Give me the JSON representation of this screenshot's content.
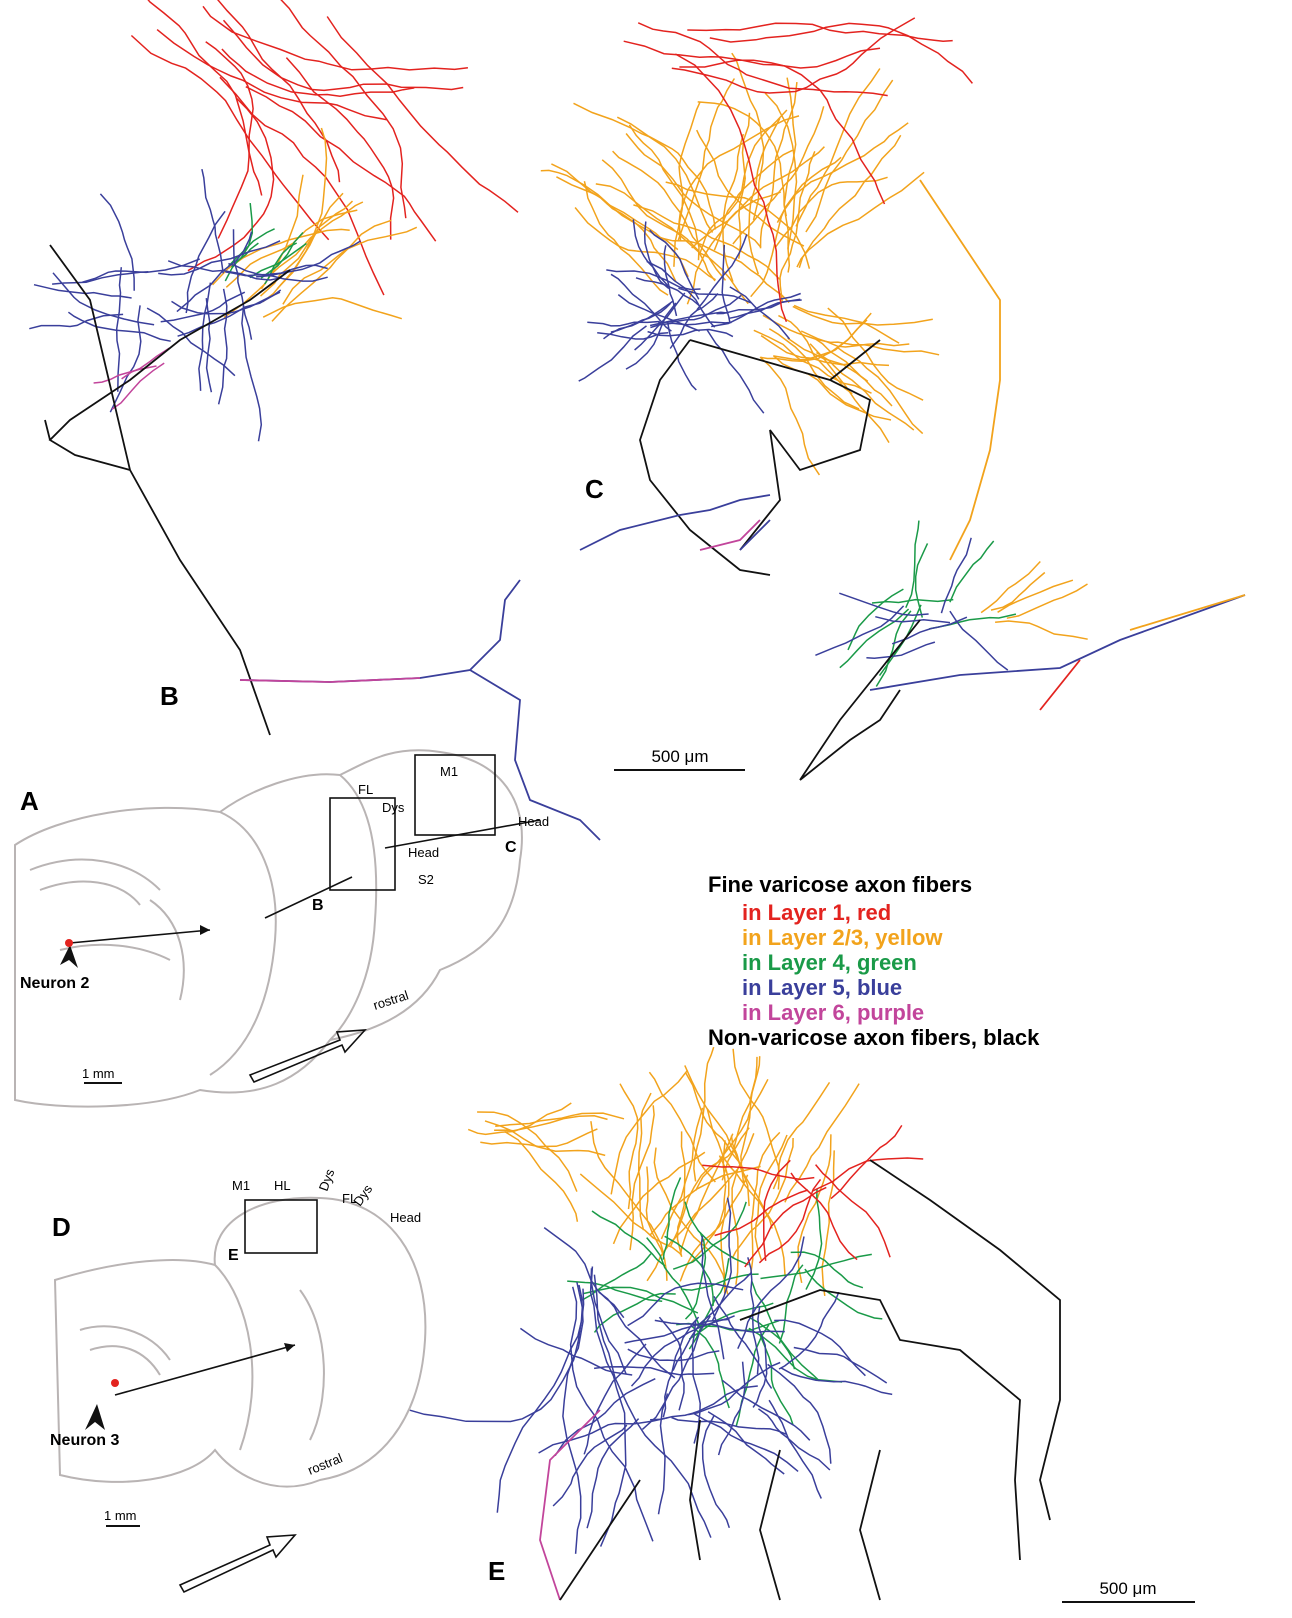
{
  "panels": {
    "B": {
      "label": "B"
    },
    "C": {
      "label": "C",
      "scale_bar": "500 μm"
    },
    "A": {
      "label": "A",
      "regions": [
        "M1",
        "FL",
        "Dys",
        "Head",
        "Head",
        "S2"
      ],
      "inset_labels": [
        "B",
        "C"
      ],
      "neuron": "Neuron 2",
      "direction": "rostral",
      "scale_bar": "1 mm"
    },
    "D": {
      "label": "D",
      "regions": [
        "M1",
        "HL",
        "Dys",
        "FL",
        "Dys",
        "Head"
      ],
      "inset_labels": [
        "E"
      ],
      "neuron": "Neuron 3",
      "direction": "rostral",
      "scale_bar": "1 mm"
    },
    "E": {
      "label": "E",
      "scale_bar": "500 μm"
    }
  },
  "legend": {
    "title": "Fine varicose axon fibers",
    "items": [
      {
        "text": "in Layer 1, red",
        "color": "#e3231f"
      },
      {
        "text": "in Layer 2/3, yellow",
        "color": "#f2a31c"
      },
      {
        "text": "in Layer 4, green",
        "color": "#1a9a48"
      },
      {
        "text": "in Layer 5, blue",
        "color": "#3a3f9b"
      },
      {
        "text": "in Layer 6, purple",
        "color": "#c2459b"
      }
    ],
    "footer": "Non-varicose axon fibers, black"
  }
}
